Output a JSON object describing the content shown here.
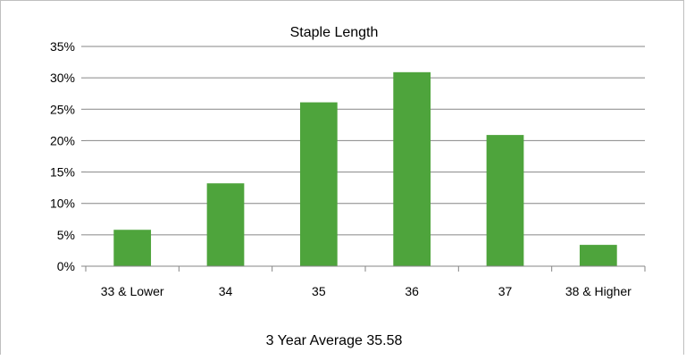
{
  "chart_data": {
    "type": "bar",
    "title": "Staple Length",
    "xlabel": "3 Year Average 35.58",
    "ylabel": "",
    "categories": [
      "33 & Lower",
      "34",
      "35",
      "36",
      "37",
      "38 & Higher"
    ],
    "values": [
      5.8,
      13.2,
      26.1,
      30.9,
      20.9,
      3.4
    ],
    "ylim": [
      0,
      35
    ],
    "yticks": [
      0,
      5,
      10,
      15,
      20,
      25,
      30,
      35
    ],
    "ytick_labels": [
      "0%",
      "5%",
      "10%",
      "15%",
      "20%",
      "25%",
      "30%",
      "35%"
    ],
    "grid": true,
    "legend": "none",
    "bar_color": "#4ea43c",
    "grid_color": "#868686"
  }
}
